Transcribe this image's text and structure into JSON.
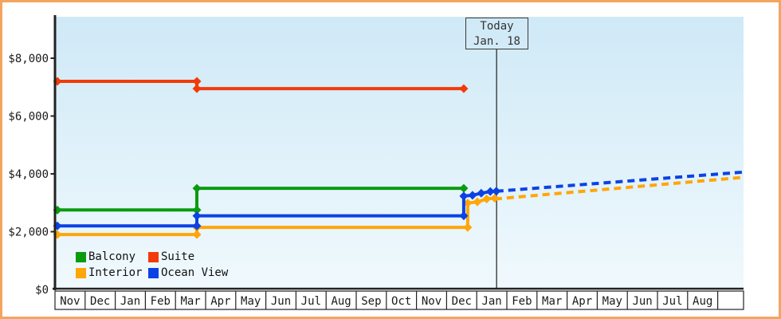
{
  "window": {
    "border_color": "#f3a55f"
  },
  "chart_data": {
    "type": "line",
    "title": "",
    "x_unit": "months from chart start (Nov of first year); 1.0 = one month cell",
    "x_axis": {
      "month_labels": [
        "Nov",
        "Dec",
        "Jan",
        "Feb",
        "Mar",
        "Apr",
        "May",
        "Jun",
        "Jul",
        "Aug",
        "Sep",
        "Oct",
        "Nov",
        "Dec",
        "Jan",
        "Feb",
        "Mar",
        "Apr",
        "May",
        "Jun",
        "Jul",
        "Aug"
      ],
      "has_trailing_empty_cell": true
    },
    "y_axis": {
      "tick_labels": [
        "$0",
        "$2,000",
        "$4,000",
        "$6,000",
        "$8,000"
      ],
      "tick_values": [
        0,
        2000,
        4000,
        6000,
        8000
      ],
      "ylim": [
        0,
        9400
      ],
      "grid": false
    },
    "today": {
      "line1": "Today",
      "line2": "Jan. 18",
      "month_index": 14.66
    },
    "series": [
      {
        "name": "Balcony",
        "color": "#0b9b10",
        "solid": [
          [
            0.08,
            2750
          ],
          [
            4.71,
            2750
          ],
          [
            4.71,
            3500
          ],
          [
            13.57,
            3500
          ]
        ],
        "dashed": []
      },
      {
        "name": "Suite",
        "color": "#f23a08",
        "solid": [
          [
            0.08,
            7200
          ],
          [
            4.71,
            7200
          ],
          [
            4.71,
            6950
          ],
          [
            13.57,
            6950
          ]
        ],
        "dashed": []
      },
      {
        "name": "Interior",
        "color": "#ffa608",
        "solid": [
          [
            0.08,
            1900
          ],
          [
            4.71,
            1900
          ],
          [
            4.71,
            2150
          ],
          [
            13.7,
            2150
          ],
          [
            13.7,
            2990
          ],
          [
            14.02,
            3030
          ],
          [
            14.33,
            3130
          ],
          [
            14.6,
            3160
          ]
        ],
        "dashed": [
          [
            14.6,
            3130
          ],
          [
            22.85,
            3880
          ]
        ]
      },
      {
        "name": "Ocean View",
        "color": "#0c42e4",
        "solid": [
          [
            0.08,
            2200
          ],
          [
            4.71,
            2200
          ],
          [
            4.71,
            2550
          ],
          [
            13.57,
            2550
          ],
          [
            13.57,
            3230
          ],
          [
            13.86,
            3260
          ],
          [
            14.15,
            3330
          ],
          [
            14.45,
            3390
          ],
          [
            14.65,
            3400
          ]
        ],
        "dashed": [
          [
            14.65,
            3400
          ],
          [
            22.85,
            4060
          ]
        ]
      }
    ],
    "legend": {
      "position": "bottom-left inside plot",
      "labels": [
        "Balcony",
        "Suite",
        "Interior",
        "Ocean View"
      ]
    },
    "colors": {
      "background_top": "#cfe9f7",
      "background_bottom": "#f0f9fd",
      "axis": "#222222",
      "text": "#1a1a1a",
      "today_line": "#3a3a3a",
      "month_row_bg": "#ffffff"
    }
  }
}
